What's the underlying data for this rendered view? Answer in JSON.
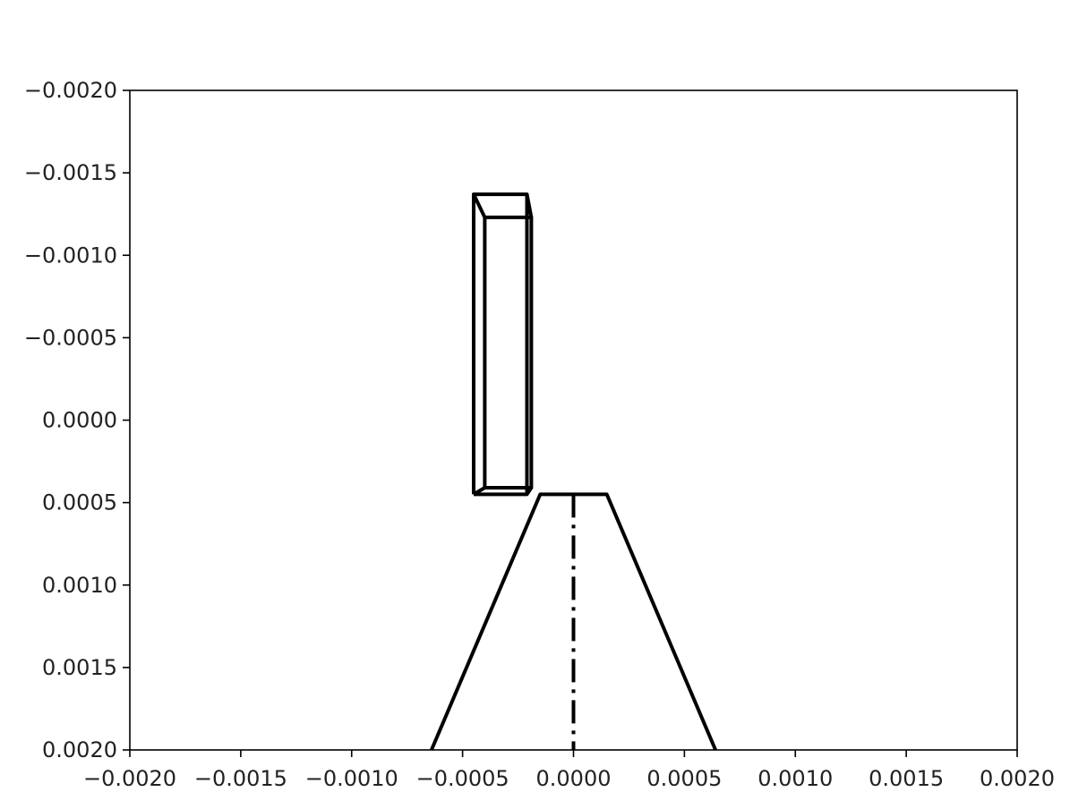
{
  "chart_data": {
    "type": "line",
    "title": "",
    "xlabel": "",
    "ylabel": "",
    "xlim": [
      -0.002,
      0.002
    ],
    "ylim": [
      0.002,
      -0.002
    ],
    "y_inverted": true,
    "grid": false,
    "legend": "none",
    "x_ticks": [
      {
        "value": -0.002,
        "label": "−0.0020"
      },
      {
        "value": -0.0015,
        "label": "−0.0015"
      },
      {
        "value": -0.001,
        "label": "−0.0010"
      },
      {
        "value": -0.0005,
        "label": "−0.0005"
      },
      {
        "value": 0.0,
        "label": "0.0000"
      },
      {
        "value": 0.0005,
        "label": "0.0005"
      },
      {
        "value": 0.001,
        "label": "0.0010"
      },
      {
        "value": 0.0015,
        "label": "0.0015"
      },
      {
        "value": 0.002,
        "label": "0.0020"
      }
    ],
    "y_ticks": [
      {
        "value": -0.002,
        "label": "−0.0020"
      },
      {
        "value": -0.0015,
        "label": "−0.0015"
      },
      {
        "value": -0.001,
        "label": "−0.0010"
      },
      {
        "value": -0.0005,
        "label": "−0.0005"
      },
      {
        "value": 0.0,
        "label": "0.0000"
      },
      {
        "value": 0.0005,
        "label": "0.0005"
      },
      {
        "value": 0.001,
        "label": "0.0010"
      },
      {
        "value": 0.0015,
        "label": "0.0015"
      },
      {
        "value": 0.002,
        "label": "0.0020"
      }
    ],
    "series": [
      {
        "style": "solid",
        "color": "#000000",
        "x": [
          -0.00045,
          -0.00045,
          -0.00021,
          -0.00045
        ],
        "y": [
          0.00045,
          -0.00137,
          -0.00137,
          -0.00137
        ]
      },
      {
        "style": "solid",
        "color": "#000000",
        "x": [
          -0.0004,
          -0.0004,
          -0.00019,
          -0.00019,
          -0.0004
        ],
        "y": [
          0.00041,
          -0.00123,
          -0.00123,
          0.00041,
          0.00041
        ]
      },
      {
        "style": "solid",
        "color": "#000000",
        "x": [
          -0.00045,
          -0.0004
        ],
        "y": [
          -0.00137,
          -0.00123
        ]
      },
      {
        "style": "solid",
        "color": "#000000",
        "x": [
          -0.00021,
          -0.00019
        ],
        "y": [
          -0.00137,
          -0.00123
        ]
      },
      {
        "style": "solid",
        "color": "#000000",
        "x": [
          -0.00045,
          -0.00021,
          -0.00019
        ],
        "y": [
          0.00045,
          0.00045,
          0.00041
        ]
      },
      {
        "style": "solid",
        "color": "#000000",
        "x": [
          -0.00045,
          -0.0004
        ],
        "y": [
          0.00045,
          0.00041
        ]
      },
      {
        "style": "solid",
        "color": "#000000",
        "x": [
          -0.00021,
          -0.00021
        ],
        "y": [
          -0.00137,
          0.00045
        ]
      },
      {
        "style": "solid",
        "color": "#000000",
        "x": [
          -0.00064,
          -0.00015,
          0.00015,
          0.00064
        ],
        "y": [
          0.002,
          0.00045,
          0.00045,
          0.002
        ]
      },
      {
        "style": "dashdot",
        "color": "#000000",
        "x": [
          0.0,
          0.0
        ],
        "y": [
          0.00045,
          0.002
        ]
      }
    ]
  }
}
